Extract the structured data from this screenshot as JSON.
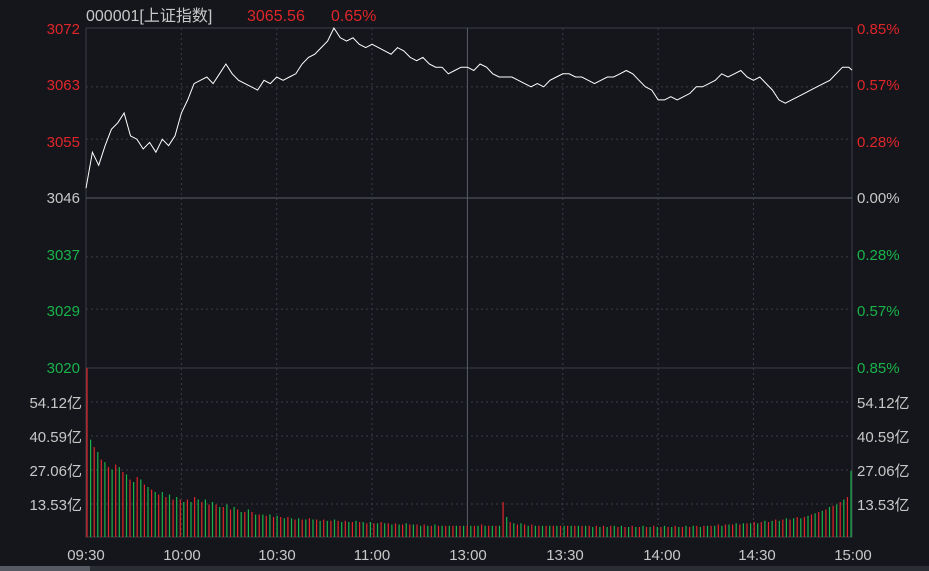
{
  "header": {
    "code": "000001[上证指数]",
    "price": "3065.56",
    "change_pct": "0.65%"
  },
  "colors": {
    "background": "#14161b",
    "grid": "#3a3d44",
    "price_line": "#ffffff",
    "up": "#e0262a",
    "down": "#19b34a",
    "neutral_text": "#c8c8c8"
  },
  "chart_data": {
    "type": "line",
    "price_axis": {
      "min": 3020,
      "max": 3072,
      "ref": 3046,
      "ticks_up": [
        "3072",
        "3063",
        "3055"
      ],
      "tick_ref": "3046",
      "ticks_down": [
        "3037",
        "3029",
        "3020"
      ]
    },
    "pct_axis": {
      "ticks_up": [
        "0.85%",
        "0.57%",
        "0.28%"
      ],
      "tick_ref": "0.00%",
      "ticks_down": [
        "0.28%",
        "0.57%",
        "0.85%"
      ]
    },
    "volume_axis": {
      "max": 67.65,
      "ticks": [
        "54.12亿",
        "40.59亿",
        "27.06亿",
        "13.53亿"
      ]
    },
    "x_ticks": [
      "09:30",
      "10:00",
      "10:30",
      "11:00",
      "13:00",
      "13:30",
      "14:00",
      "14:30",
      "15:00"
    ],
    "price_series": [
      [
        0,
        3047.5
      ],
      [
        2,
        3053
      ],
      [
        4,
        3051
      ],
      [
        6,
        3054
      ],
      [
        8,
        3056.5
      ],
      [
        10,
        3057.5
      ],
      [
        12,
        3059
      ],
      [
        14,
        3055.5
      ],
      [
        16,
        3055
      ],
      [
        18,
        3053.5
      ],
      [
        20,
        3054.5
      ],
      [
        22,
        3053
      ],
      [
        24,
        3055
      ],
      [
        26,
        3054
      ],
      [
        28,
        3055.5
      ],
      [
        30,
        3059
      ],
      [
        32,
        3061
      ],
      [
        34,
        3063.5
      ],
      [
        36,
        3064
      ],
      [
        38,
        3064.5
      ],
      [
        40,
        3063.5
      ],
      [
        42,
        3065
      ],
      [
        44,
        3066.5
      ],
      [
        46,
        3065
      ],
      [
        48,
        3064
      ],
      [
        50,
        3063.5
      ],
      [
        52,
        3063
      ],
      [
        54,
        3062.5
      ],
      [
        56,
        3064
      ],
      [
        58,
        3063.5
      ],
      [
        60,
        3064.5
      ],
      [
        62,
        3064
      ],
      [
        64,
        3064.5
      ],
      [
        66,
        3065
      ],
      [
        68,
        3066.5
      ],
      [
        70,
        3067.5
      ],
      [
        72,
        3068
      ],
      [
        74,
        3069
      ],
      [
        76,
        3070
      ],
      [
        78,
        3072
      ],
      [
        80,
        3070.5
      ],
      [
        82,
        3070
      ],
      [
        84,
        3070.5
      ],
      [
        86,
        3069.5
      ],
      [
        88,
        3069
      ],
      [
        90,
        3069.5
      ],
      [
        92,
        3069
      ],
      [
        94,
        3068.5
      ],
      [
        96,
        3068
      ],
      [
        98,
        3069
      ],
      [
        100,
        3068.5
      ],
      [
        102,
        3067.5
      ],
      [
        104,
        3067
      ],
      [
        106,
        3067.5
      ],
      [
        108,
        3066.5
      ],
      [
        110,
        3066
      ],
      [
        112,
        3066
      ],
      [
        114,
        3065
      ],
      [
        116,
        3065.5
      ],
      [
        118,
        3066
      ],
      [
        120,
        3066
      ],
      [
        122,
        3065.5
      ],
      [
        124,
        3066.5
      ],
      [
        126,
        3066
      ],
      [
        128,
        3065
      ],
      [
        130,
        3064.5
      ],
      [
        132,
        3064.5
      ],
      [
        134,
        3064.5
      ],
      [
        136,
        3064
      ],
      [
        138,
        3063.5
      ],
      [
        140,
        3063
      ],
      [
        142,
        3063.5
      ],
      [
        144,
        3063
      ],
      [
        146,
        3064
      ],
      [
        148,
        3064.5
      ],
      [
        150,
        3065
      ],
      [
        152,
        3065
      ],
      [
        154,
        3064.5
      ],
      [
        156,
        3064.5
      ],
      [
        158,
        3064
      ],
      [
        160,
        3063.5
      ],
      [
        162,
        3064
      ],
      [
        164,
        3064.5
      ],
      [
        166,
        3064.5
      ],
      [
        168,
        3065
      ],
      [
        170,
        3065.5
      ],
      [
        172,
        3065
      ],
      [
        174,
        3064
      ],
      [
        176,
        3063
      ],
      [
        178,
        3062.5
      ],
      [
        180,
        3061
      ],
      [
        182,
        3061
      ],
      [
        184,
        3061.5
      ],
      [
        186,
        3061
      ],
      [
        188,
        3061.5
      ],
      [
        190,
        3062
      ],
      [
        192,
        3063
      ],
      [
        194,
        3063
      ],
      [
        196,
        3063.5
      ],
      [
        198,
        3064
      ],
      [
        200,
        3065
      ],
      [
        202,
        3064.5
      ],
      [
        204,
        3065
      ],
      [
        206,
        3065.5
      ],
      [
        208,
        3064.5
      ],
      [
        210,
        3064
      ],
      [
        212,
        3064.5
      ],
      [
        214,
        3063.5
      ],
      [
        216,
        3062.5
      ],
      [
        218,
        3061
      ],
      [
        220,
        3060.5
      ],
      [
        222,
        3061
      ],
      [
        224,
        3061.5
      ],
      [
        226,
        3062
      ],
      [
        228,
        3062.5
      ],
      [
        230,
        3063
      ],
      [
        232,
        3063.5
      ],
      [
        234,
        3064
      ],
      [
        236,
        3065
      ],
      [
        238,
        3066
      ],
      [
        240,
        3066
      ],
      [
        241,
        3065.56
      ]
    ],
    "volume_series": [
      [
        67.6,
        "up"
      ],
      [
        39,
        "down"
      ],
      [
        36,
        "up"
      ],
      [
        34,
        "down"
      ],
      [
        31,
        "up"
      ],
      [
        30,
        "down"
      ],
      [
        28,
        "up"
      ],
      [
        27,
        "down"
      ],
      [
        29,
        "up"
      ],
      [
        28,
        "down"
      ],
      [
        26,
        "up"
      ],
      [
        25,
        "down"
      ],
      [
        23,
        "up"
      ],
      [
        22,
        "down"
      ],
      [
        24,
        "up"
      ],
      [
        23,
        "down"
      ],
      [
        21,
        "up"
      ],
      [
        20,
        "down"
      ],
      [
        19,
        "up"
      ],
      [
        18,
        "down"
      ],
      [
        17,
        "up"
      ],
      [
        18,
        "down"
      ],
      [
        16,
        "up"
      ],
      [
        17,
        "down"
      ],
      [
        15,
        "up"
      ],
      [
        16,
        "down"
      ],
      [
        15,
        "up"
      ],
      [
        14,
        "down"
      ],
      [
        15,
        "up"
      ],
      [
        14,
        "down"
      ],
      [
        16,
        "up"
      ],
      [
        15,
        "down"
      ],
      [
        14,
        "up"
      ],
      [
        15,
        "down"
      ],
      [
        13,
        "up"
      ],
      [
        14,
        "down"
      ],
      [
        13,
        "up"
      ],
      [
        12,
        "down"
      ],
      [
        12,
        "up"
      ],
      [
        13,
        "down"
      ],
      [
        11,
        "up"
      ],
      [
        12,
        "down"
      ],
      [
        11,
        "up"
      ],
      [
        10,
        "down"
      ],
      [
        10,
        "up"
      ],
      [
        11,
        "down"
      ],
      [
        10,
        "up"
      ],
      [
        9,
        "down"
      ],
      [
        9,
        "up"
      ],
      [
        9,
        "down"
      ],
      [
        8.5,
        "up"
      ],
      [
        9,
        "down"
      ],
      [
        8,
        "up"
      ],
      [
        8.5,
        "down"
      ],
      [
        8,
        "up"
      ],
      [
        7.5,
        "down"
      ],
      [
        8,
        "up"
      ],
      [
        7.5,
        "down"
      ],
      [
        7,
        "up"
      ],
      [
        7.5,
        "down"
      ],
      [
        7,
        "up"
      ],
      [
        7,
        "down"
      ],
      [
        7.5,
        "up"
      ],
      [
        7,
        "down"
      ],
      [
        7,
        "up"
      ],
      [
        6.5,
        "down"
      ],
      [
        7,
        "up"
      ],
      [
        6.5,
        "down"
      ],
      [
        6.5,
        "up"
      ],
      [
        7,
        "down"
      ],
      [
        6.5,
        "up"
      ],
      [
        6,
        "down"
      ],
      [
        6.5,
        "up"
      ],
      [
        6,
        "down"
      ],
      [
        6,
        "up"
      ],
      [
        6.5,
        "down"
      ],
      [
        6,
        "up"
      ],
      [
        6,
        "down"
      ],
      [
        5.5,
        "up"
      ],
      [
        6,
        "down"
      ],
      [
        5.5,
        "up"
      ],
      [
        5.5,
        "down"
      ],
      [
        6,
        "up"
      ],
      [
        5.5,
        "down"
      ],
      [
        5.5,
        "up"
      ],
      [
        5,
        "down"
      ],
      [
        5.5,
        "up"
      ],
      [
        5,
        "down"
      ],
      [
        5,
        "up"
      ],
      [
        5.5,
        "down"
      ],
      [
        5,
        "up"
      ],
      [
        5,
        "down"
      ],
      [
        5,
        "up"
      ],
      [
        4.5,
        "down"
      ],
      [
        5,
        "up"
      ],
      [
        4.5,
        "down"
      ],
      [
        4.5,
        "up"
      ],
      [
        5,
        "down"
      ],
      [
        4.5,
        "up"
      ],
      [
        4.5,
        "down"
      ],
      [
        4.5,
        "up"
      ],
      [
        4.5,
        "down"
      ],
      [
        4.5,
        "up"
      ],
      [
        4.5,
        "down"
      ],
      [
        4.5,
        "up"
      ],
      [
        4.5,
        "down"
      ],
      [
        4.5,
        "up"
      ],
      [
        4.5,
        "down"
      ],
      [
        4.5,
        "up"
      ],
      [
        4.5,
        "down"
      ],
      [
        5,
        "up"
      ],
      [
        4.5,
        "down"
      ],
      [
        4.5,
        "up"
      ],
      [
        4.5,
        "down"
      ],
      [
        4.5,
        "up"
      ],
      [
        4.5,
        "down"
      ],
      [
        14,
        "up"
      ],
      [
        8,
        "down"
      ],
      [
        6,
        "up"
      ],
      [
        5.5,
        "down"
      ],
      [
        5,
        "up"
      ],
      [
        5.5,
        "down"
      ],
      [
        5,
        "up"
      ],
      [
        4.5,
        "down"
      ],
      [
        5,
        "up"
      ],
      [
        4.5,
        "down"
      ],
      [
        4.5,
        "up"
      ],
      [
        4.5,
        "down"
      ],
      [
        4.5,
        "up"
      ],
      [
        4.5,
        "down"
      ],
      [
        4.5,
        "up"
      ],
      [
        4.5,
        "down"
      ],
      [
        4.5,
        "up"
      ],
      [
        4.5,
        "down"
      ],
      [
        4.5,
        "up"
      ],
      [
        4.5,
        "down"
      ],
      [
        4.5,
        "up"
      ],
      [
        4.5,
        "down"
      ],
      [
        4.5,
        "up"
      ],
      [
        4.5,
        "down"
      ],
      [
        4.5,
        "up"
      ],
      [
        4,
        "down"
      ],
      [
        4.5,
        "up"
      ],
      [
        4,
        "down"
      ],
      [
        4.5,
        "up"
      ],
      [
        4,
        "down"
      ],
      [
        4.5,
        "up"
      ],
      [
        4.5,
        "down"
      ],
      [
        4,
        "up"
      ],
      [
        4.5,
        "down"
      ],
      [
        4,
        "up"
      ],
      [
        4,
        "down"
      ],
      [
        4.5,
        "up"
      ],
      [
        4,
        "down"
      ],
      [
        4,
        "up"
      ],
      [
        4.5,
        "down"
      ],
      [
        4,
        "up"
      ],
      [
        4,
        "down"
      ],
      [
        4.5,
        "up"
      ],
      [
        4,
        "down"
      ],
      [
        4,
        "up"
      ],
      [
        4.5,
        "down"
      ],
      [
        4,
        "up"
      ],
      [
        4,
        "down"
      ],
      [
        4.5,
        "up"
      ],
      [
        4,
        "down"
      ],
      [
        4,
        "up"
      ],
      [
        4.5,
        "down"
      ],
      [
        4,
        "up"
      ],
      [
        4.5,
        "down"
      ],
      [
        4.5,
        "up"
      ],
      [
        4,
        "down"
      ],
      [
        4.5,
        "up"
      ],
      [
        4.5,
        "down"
      ],
      [
        4.5,
        "up"
      ],
      [
        4.5,
        "down"
      ],
      [
        5,
        "up"
      ],
      [
        4.5,
        "down"
      ],
      [
        5,
        "up"
      ],
      [
        5,
        "down"
      ],
      [
        5,
        "up"
      ],
      [
        5.5,
        "down"
      ],
      [
        5,
        "up"
      ],
      [
        5.5,
        "down"
      ],
      [
        5.5,
        "up"
      ],
      [
        5.5,
        "down"
      ],
      [
        6,
        "up"
      ],
      [
        5.5,
        "down"
      ],
      [
        6,
        "up"
      ],
      [
        6.5,
        "down"
      ],
      [
        6,
        "up"
      ],
      [
        6.5,
        "down"
      ],
      [
        7,
        "up"
      ],
      [
        6.5,
        "down"
      ],
      [
        7,
        "up"
      ],
      [
        7.5,
        "down"
      ],
      [
        7,
        "up"
      ],
      [
        7.5,
        "down"
      ],
      [
        8,
        "up"
      ],
      [
        7.5,
        "down"
      ],
      [
        8,
        "up"
      ],
      [
        8.5,
        "down"
      ],
      [
        9,
        "up"
      ],
      [
        9.5,
        "down"
      ],
      [
        10,
        "up"
      ],
      [
        10.5,
        "down"
      ],
      [
        11,
        "up"
      ],
      [
        12,
        "down"
      ],
      [
        12.5,
        "up"
      ],
      [
        13,
        "down"
      ],
      [
        14,
        "up"
      ],
      [
        15,
        "down"
      ],
      [
        16,
        "up"
      ],
      [
        26.5,
        "down"
      ]
    ]
  }
}
